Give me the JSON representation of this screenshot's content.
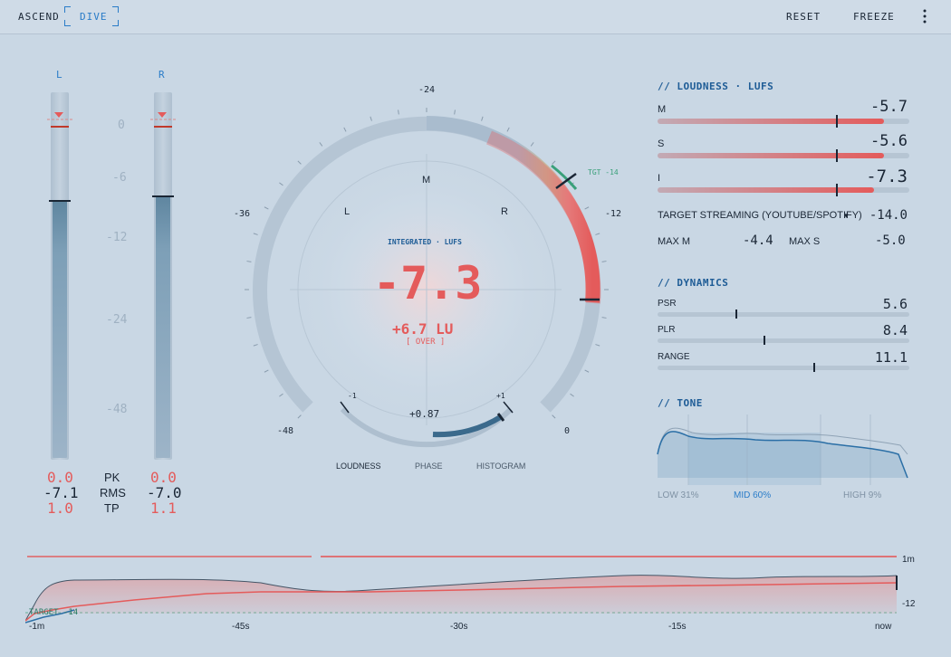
{
  "topbar": {
    "ascend": "ASCEND",
    "dive": "DIVE",
    "reset": "RESET",
    "freeze": "FREEZE",
    "more_icon": "more-vertical-icon"
  },
  "meters": {
    "left_label": "L",
    "right_label": "R",
    "scale": [
      "0",
      "-6",
      "-12",
      "-24",
      "-48"
    ],
    "left": {
      "pk": "0.0",
      "rms": "-7.1",
      "tp": "1.0"
    },
    "right": {
      "pk": "0.0",
      "rms": "-7.0",
      "tp": "1.1"
    },
    "pk_label": "PK",
    "rms_label": "RMS",
    "tp_label": "TP"
  },
  "dial": {
    "ticks": {
      "top": "-24",
      "left": "-36",
      "right": "-12",
      "bottom_left": "-48",
      "bottom_right": "0"
    },
    "target_tag": "TGT -14",
    "m_label": "M",
    "l_label": "L",
    "r_label": "R",
    "caption": "INTEGRATED · LUFS",
    "value": "-7.3",
    "delta": "+6.7 LU",
    "status": "[ OVER ]",
    "phase_min": "-1",
    "phase_max": "+1",
    "phase_value": "+0.87"
  },
  "tabs": [
    "LOUDNESS",
    "PHASE",
    "HISTOGRAM"
  ],
  "loudness": {
    "title": "// LOUDNESS · LUFS",
    "rows": [
      {
        "label": "M",
        "value": "-5.7",
        "fill": 0.9,
        "marker": 0.71
      },
      {
        "label": "S",
        "value": "-5.6",
        "fill": 0.9,
        "marker": 0.71
      },
      {
        "label": "I",
        "value": "-7.3",
        "fill": 0.86,
        "marker": 0.71
      }
    ],
    "target_label": "TARGET STREAMING (YOUTUBE/SPOTIFY)",
    "target_value": "-14.0",
    "max_m_label": "MAX M",
    "max_m_value": "-4.4",
    "max_s_label": "MAX S",
    "max_s_value": "-5.0"
  },
  "dynamics": {
    "title": "// DYNAMICS",
    "rows": [
      {
        "label": "PSR",
        "value": "5.6",
        "marker": 0.31
      },
      {
        "label": "PLR",
        "value": "8.4",
        "marker": 0.42
      },
      {
        "label": "RANGE",
        "value": "11.1",
        "marker": 0.62
      }
    ]
  },
  "tone": {
    "title": "// TONE",
    "low": "LOW 31%",
    "mid": "MID 60%",
    "high": "HIGH 9%"
  },
  "history": {
    "right_top": "1m",
    "right_mid": "-12",
    "target": "TARGET -14",
    "x_labels": [
      "-1m",
      "-45s",
      "-30s",
      "-15s",
      "now"
    ]
  },
  "colors": {
    "accent": "#2a7cc8",
    "warn": "#e45b5b",
    "target": "#3aa07a"
  }
}
